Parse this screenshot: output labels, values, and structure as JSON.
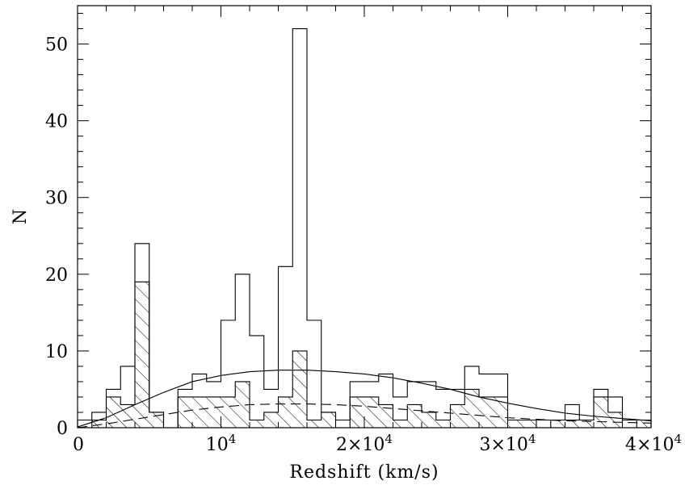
{
  "chart_data": {
    "type": "histogram",
    "xlabel": "Redshift (km/s)",
    "ylabel": "N",
    "xlim": [
      0,
      40000
    ],
    "ylim": [
      0,
      55
    ],
    "bin_width": 1000,
    "x_tick_labels": [
      {
        "value": 0,
        "base": "0",
        "exp": ""
      },
      {
        "value": 10000,
        "base": "10",
        "exp": "4"
      },
      {
        "value": 20000,
        "base": "2×10",
        "exp": "4"
      },
      {
        "value": 30000,
        "base": "3×10",
        "exp": "4"
      },
      {
        "value": 40000,
        "base": "4×10",
        "exp": "4"
      }
    ],
    "y_tick_labels": [
      {
        "value": 0,
        "label": "0"
      },
      {
        "value": 10,
        "label": "10"
      },
      {
        "value": 20,
        "label": "20"
      },
      {
        "value": 30,
        "label": "30"
      },
      {
        "value": 40,
        "label": "40"
      },
      {
        "value": 50,
        "label": "50"
      }
    ],
    "series": [
      {
        "style": "outline",
        "bin_edges_start": 0,
        "values": [
          1,
          2,
          5,
          8,
          24,
          2,
          0,
          5,
          7,
          6,
          14,
          20,
          12,
          5,
          21,
          52,
          14,
          2,
          1,
          6,
          6,
          7,
          4,
          6,
          6,
          5,
          5,
          8,
          7,
          7,
          1,
          1,
          1,
          1,
          3,
          1,
          5,
          4,
          1,
          1
        ]
      },
      {
        "style": "hatched",
        "bin_edges_start": 0,
        "values": [
          0,
          1,
          4,
          3,
          19,
          2,
          0,
          4,
          4,
          4,
          4,
          6,
          1,
          2,
          4,
          10,
          1,
          2,
          0,
          4,
          4,
          3,
          1,
          3,
          2,
          1,
          3,
          5,
          4,
          4,
          1,
          1,
          0,
          1,
          1,
          1,
          4,
          2,
          0,
          1
        ]
      }
    ],
    "curves": [
      {
        "style": "solid",
        "points": [
          [
            0,
            0.1
          ],
          [
            2000,
            1.3
          ],
          [
            4000,
            3.0
          ],
          [
            6000,
            4.6
          ],
          [
            8000,
            6.0
          ],
          [
            10000,
            6.8
          ],
          [
            12000,
            7.3
          ],
          [
            14000,
            7.5
          ],
          [
            16000,
            7.5
          ],
          [
            18000,
            7.3
          ],
          [
            20000,
            7.0
          ],
          [
            22000,
            6.5
          ],
          [
            24000,
            5.8
          ],
          [
            26000,
            5.0
          ],
          [
            28000,
            4.0
          ],
          [
            30000,
            3.2
          ],
          [
            32000,
            2.5
          ],
          [
            34000,
            1.9
          ],
          [
            36000,
            1.5
          ],
          [
            38000,
            1.2
          ],
          [
            40000,
            0.9
          ]
        ]
      },
      {
        "style": "dashed",
        "points": [
          [
            0,
            0.0
          ],
          [
            2000,
            0.5
          ],
          [
            4000,
            1.1
          ],
          [
            6000,
            1.7
          ],
          [
            8000,
            2.3
          ],
          [
            10000,
            2.7
          ],
          [
            12000,
            3.0
          ],
          [
            14000,
            3.1
          ],
          [
            16000,
            3.1
          ],
          [
            18000,
            3.0
          ],
          [
            20000,
            2.8
          ],
          [
            22000,
            2.5
          ],
          [
            24000,
            2.2
          ],
          [
            26000,
            1.9
          ],
          [
            28000,
            1.6
          ],
          [
            30000,
            1.3
          ],
          [
            32000,
            1.1
          ],
          [
            34000,
            0.9
          ],
          [
            36000,
            0.8
          ],
          [
            38000,
            0.7
          ],
          [
            40000,
            0.6
          ]
        ]
      }
    ]
  }
}
